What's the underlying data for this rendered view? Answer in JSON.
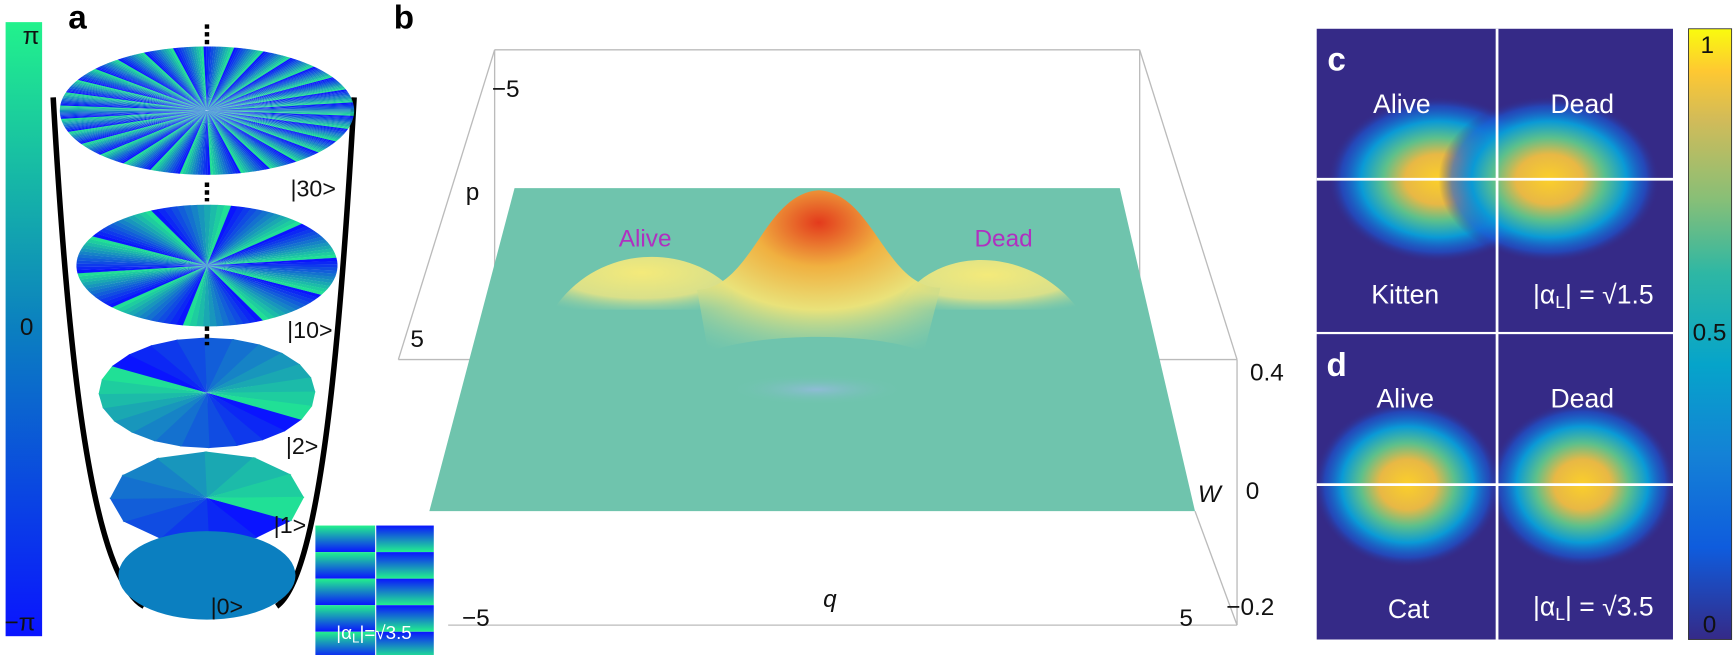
{
  "panel_a": {
    "label": "a",
    "colorbar": {
      "top": "π",
      "middle": "0",
      "bottom": "−π"
    },
    "kets": [
      "|30>",
      "|10>",
      "|2>",
      "|1>",
      "|0>"
    ],
    "inset": {
      "pre": "|α",
      "sub": "L",
      "post": "|=√3.5"
    }
  },
  "panel_b": {
    "label": "b",
    "peaks": [
      "Alive",
      "Dead"
    ],
    "axes": {
      "p": "p",
      "q": "q",
      "w": "W"
    },
    "ticks": {
      "p_top": "−5",
      "p_bottom": "5",
      "q_left": "−5",
      "q_right": "5",
      "w_top": "0.4",
      "w_mid": "0",
      "w_bottom": "−0.2"
    }
  },
  "panel_c": {
    "label": "c",
    "left": "Alive",
    "right": "Dead",
    "name": "Kitten",
    "amplitude": {
      "pre": "|α",
      "sub": "L",
      "post": "| = √1.5"
    }
  },
  "panel_d": {
    "label": "d",
    "left": "Alive",
    "right": "Dead",
    "name": "Cat",
    "amplitude": {
      "pre": "|α",
      "sub": "L",
      "post": "| = √3.5"
    }
  },
  "colorbar_right": {
    "top": "1",
    "middle": "0.5",
    "bottom": "0"
  }
}
